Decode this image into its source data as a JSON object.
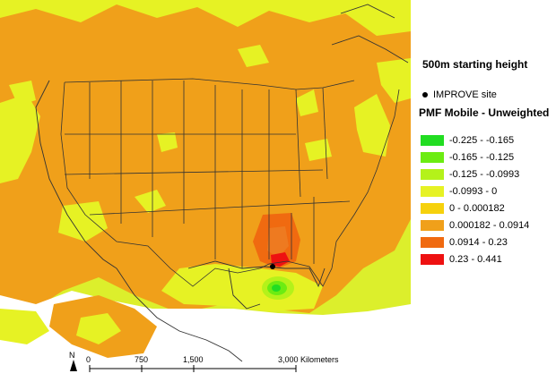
{
  "map": {
    "title": "500m starting height",
    "site_label": "IMPROVE site",
    "north_label": "N",
    "scale_labels": [
      "0",
      "750",
      "1,500",
      "3,000 Kilometers"
    ]
  },
  "legend": {
    "title": "PMF Mobile - Unweighted",
    "items": [
      {
        "label": "-0.225 - -0.165",
        "color": "#22dd22"
      },
      {
        "label": "-0.165 - -0.125",
        "color": "#6cec12"
      },
      {
        "label": "-0.125 - -0.0993",
        "color": "#b4f21a"
      },
      {
        "label": "-0.0993 - 0",
        "color": "#e6f224"
      },
      {
        "label": "0 - 0.000182",
        "color": "#f6d10c"
      },
      {
        "label": "0.000182 - 0.0914",
        "color": "#f0a01a"
      },
      {
        "label": "0.0914 - 0.23",
        "color": "#f06a10"
      },
      {
        "label": "0.23 - 0.441",
        "color": "#ee1111"
      }
    ]
  }
}
